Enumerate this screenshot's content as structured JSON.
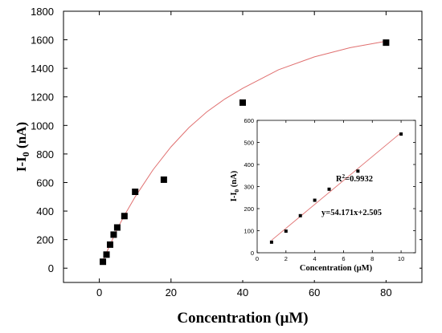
{
  "chart_data": [
    {
      "type": "scatter",
      "xlabel": "Concentration (μM)",
      "ylabel_main": "I-I",
      "ylabel_sub": "0",
      "ylabel_unit": " (nA)",
      "xlim": [
        -10,
        90
      ],
      "ylim": [
        -100,
        1800
      ],
      "xticks": [
        0,
        20,
        40,
        60,
        80
      ],
      "yticks": [
        0,
        200,
        400,
        600,
        800,
        1000,
        1200,
        1400,
        1600,
        1800
      ],
      "grid": false,
      "series": [
        {
          "x": [
            1,
            2,
            3,
            4,
            5,
            7,
            10,
            18,
            40,
            80
          ],
          "y": [
            45,
            95,
            165,
            235,
            285,
            365,
            535,
            620,
            1160,
            1580
          ]
        }
      ],
      "fit_curve": {
        "x": [
          1,
          3,
          5,
          7,
          10,
          15,
          20,
          25,
          30,
          35,
          40,
          50,
          60,
          70,
          80
        ],
        "y": [
          55,
          165,
          275,
          370,
          500,
          690,
          850,
          985,
          1095,
          1185,
          1260,
          1390,
          1480,
          1545,
          1590
        ],
        "color": "#e07070"
      }
    },
    {
      "type": "scatter",
      "xlabel": "Concentration (μM)",
      "ylabel_main": "I-I",
      "ylabel_sub": "0",
      "ylabel_unit": " (nA)",
      "xlim": [
        0,
        11
      ],
      "ylim": [
        0,
        600
      ],
      "xticks": [
        0,
        2,
        4,
        6,
        8,
        10
      ],
      "yticks": [
        0,
        100,
        200,
        300,
        400,
        500,
        600
      ],
      "grid": false,
      "series": [
        {
          "x": [
            1,
            2,
            3,
            4,
            5,
            7,
            10
          ],
          "y": [
            48,
            98,
            168,
            238,
            288,
            370,
            538
          ]
        }
      ],
      "fit_line": {
        "slope": 54.171,
        "intercept": 2.505,
        "x_range": [
          1,
          10
        ],
        "color": "#e07070"
      },
      "annotation_r2_prefix": "R",
      "annotation_r2_sup": "2",
      "annotation_r2_value": "=0.9932",
      "annotation_equation": "y=54.171x+2.505"
    }
  ]
}
